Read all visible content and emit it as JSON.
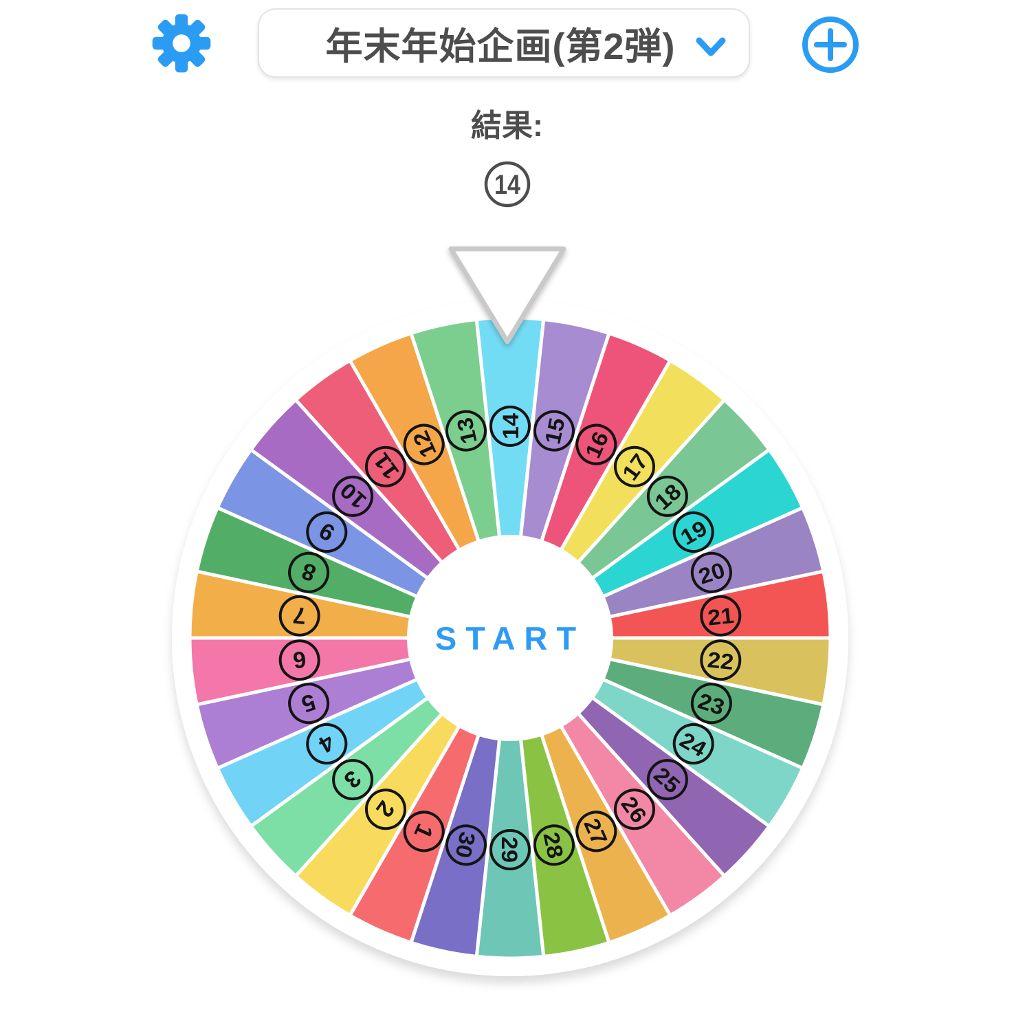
{
  "app": {
    "accent_color": "#2b9cf4",
    "text_color": "#4d4d4d",
    "background_color": "#ffffff"
  },
  "header": {
    "settings_icon": "gear-icon",
    "preset_dropdown": {
      "value": "年末年始企画(第2弾)",
      "chevron_icon": "chevron-down-icon"
    },
    "add_icon": "plus-circle-icon"
  },
  "result": {
    "label": "結果:",
    "value": "14"
  },
  "wheel": {
    "start_label": "START",
    "pointer_icon": "down-triangle-pointer",
    "top_number": "14",
    "segment_count": 30,
    "number_text_color": "#141414",
    "separator_color": "#ffffff",
    "segments": [
      {
        "number": "1",
        "color": "#F66B6E"
      },
      {
        "number": "2",
        "color": "#F8DB5C"
      },
      {
        "number": "3",
        "color": "#7EDFA6"
      },
      {
        "number": "4",
        "color": "#71D3F6"
      },
      {
        "number": "5",
        "color": "#AC7FD4"
      },
      {
        "number": "6",
        "color": "#F377A9"
      },
      {
        "number": "7",
        "color": "#F1AE49"
      },
      {
        "number": "8",
        "color": "#52AE67"
      },
      {
        "number": "9",
        "color": "#7B94E4"
      },
      {
        "number": "10",
        "color": "#A76BC4"
      },
      {
        "number": "11",
        "color": "#EE5E78"
      },
      {
        "number": "12",
        "color": "#F4A648"
      },
      {
        "number": "13",
        "color": "#7CCE8F"
      },
      {
        "number": "14",
        "color": "#73DCF5"
      },
      {
        "number": "15",
        "color": "#A78CD2"
      },
      {
        "number": "16",
        "color": "#EE5379"
      },
      {
        "number": "17",
        "color": "#F2E05C"
      },
      {
        "number": "18",
        "color": "#7AC795"
      },
      {
        "number": "19",
        "color": "#2BD5D2"
      },
      {
        "number": "20",
        "color": "#9B84C4"
      },
      {
        "number": "21",
        "color": "#F25554"
      },
      {
        "number": "22",
        "color": "#D9C25D"
      },
      {
        "number": "23",
        "color": "#5DAD7C"
      },
      {
        "number": "24",
        "color": "#7DD6C7"
      },
      {
        "number": "25",
        "color": "#9066B3"
      },
      {
        "number": "26",
        "color": "#F287A6"
      },
      {
        "number": "27",
        "color": "#ECB24E"
      },
      {
        "number": "28",
        "color": "#8AC344"
      },
      {
        "number": "29",
        "color": "#6EC6B6"
      },
      {
        "number": "30",
        "color": "#7A6FC6"
      }
    ]
  }
}
